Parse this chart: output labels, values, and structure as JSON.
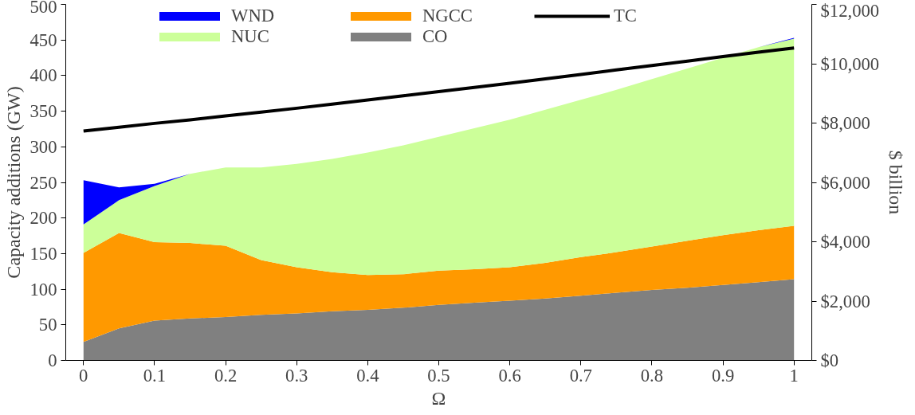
{
  "chart_data": {
    "type": "area",
    "stacked": true,
    "xlabel": "Ω",
    "ylabel": "Capacity additions (GW)",
    "y2label": "$ billion",
    "x": [
      0,
      0.05,
      0.1,
      0.15,
      0.2,
      0.25,
      0.3,
      0.35,
      0.4,
      0.45,
      0.5,
      0.55,
      0.6,
      0.65,
      0.7,
      0.75,
      0.8,
      0.85,
      0.9,
      0.95,
      1.0
    ],
    "series": [
      {
        "name": "CO",
        "color": "#808080",
        "values": [
          26,
          45,
          56,
          59,
          61,
          64,
          66,
          69,
          71,
          74,
          78,
          81,
          84,
          87,
          91,
          95,
          99,
          102,
          106,
          110,
          114
        ]
      },
      {
        "name": "NGCC",
        "color": "#ff9900",
        "values": [
          125,
          134,
          110,
          106,
          100,
          77,
          65,
          55,
          49,
          47,
          48,
          47,
          47,
          50,
          54,
          57,
          61,
          66,
          70,
          73,
          75
        ]
      },
      {
        "name": "NUC",
        "color": "#ccff99",
        "values": [
          40,
          46,
          79,
          97,
          110,
          130,
          145,
          159,
          172,
          181,
          188,
          198,
          207,
          215,
          221,
          228,
          235,
          242,
          249,
          257,
          263
        ]
      },
      {
        "name": "WND",
        "color": "#0000ff",
        "values": [
          62,
          18,
          3,
          0,
          0,
          0,
          0,
          0,
          0,
          0,
          0,
          0,
          0,
          0,
          0,
          0,
          0,
          0,
          0,
          0,
          1
        ]
      },
      {
        "name": "TC",
        "type": "line",
        "axis": "y2",
        "color": "#000000",
        "values": [
          7730,
          7860,
          7990,
          8110,
          8240,
          8370,
          8500,
          8640,
          8780,
          8920,
          9060,
          9200,
          9340,
          9490,
          9640,
          9790,
          9940,
          10090,
          10240,
          10390,
          10530
        ]
      }
    ],
    "xlim": [
      -0.025,
      1.025
    ],
    "xticks": [
      0,
      0.1,
      0.2,
      0.3,
      0.4,
      0.5,
      0.6,
      0.7,
      0.8,
      0.9,
      1
    ],
    "ylim": [
      0,
      500
    ],
    "yticks": [
      0,
      50,
      100,
      150,
      200,
      250,
      300,
      350,
      400,
      450,
      500
    ],
    "y2lim": [
      0,
      12000
    ],
    "y2ticks": [
      {
        "value": 0,
        "label": "$0"
      },
      {
        "value": 2000,
        "label": "$2,000"
      },
      {
        "value": 4000,
        "label": "$4,000"
      },
      {
        "value": 6000,
        "label": "$6,000"
      },
      {
        "value": 8000,
        "label": "$8,000"
      },
      {
        "value": 10000,
        "label": "$10,000"
      },
      {
        "value": 12000,
        "label": "$12,000"
      }
    ],
    "grid": false,
    "legend": "top"
  }
}
